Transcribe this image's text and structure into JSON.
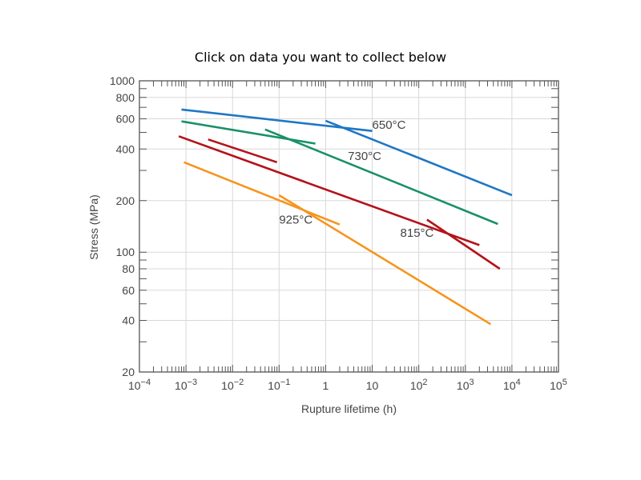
{
  "header": {
    "instruction": "Click on data you want to collect below"
  },
  "chart_data": {
    "type": "line",
    "title": "",
    "xlabel": "Rupture lifetime (h)",
    "ylabel": "Stress (MPa)",
    "xscale": "log",
    "yscale": "log",
    "xlim": [
      0.0001,
      100000
    ],
    "ylim": [
      20,
      1000
    ],
    "grid": true,
    "xticks": [
      {
        "value": 0.0001,
        "base": "10",
        "exp": "−4"
      },
      {
        "value": 0.001,
        "base": "10",
        "exp": "−3"
      },
      {
        "value": 0.01,
        "base": "10",
        "exp": "−2"
      },
      {
        "value": 0.1,
        "base": "10",
        "exp": "−1"
      },
      {
        "value": 1,
        "base": "1",
        "exp": ""
      },
      {
        "value": 10,
        "base": "10",
        "exp": ""
      },
      {
        "value": 100,
        "base": "10",
        "exp": "2"
      },
      {
        "value": 1000,
        "base": "10",
        "exp": "3"
      },
      {
        "value": 10000,
        "base": "10",
        "exp": "4"
      },
      {
        "value": 100000,
        "base": "10",
        "exp": "5"
      }
    ],
    "yticks": [
      {
        "value": 1000,
        "label": "1000"
      },
      {
        "value": 800,
        "label": "800"
      },
      {
        "value": 600,
        "label": "600"
      },
      {
        "value": 400,
        "label": "400"
      },
      {
        "value": 200,
        "label": "200"
      },
      {
        "value": 100,
        "label": "100"
      },
      {
        "value": 80,
        "label": "80"
      },
      {
        "value": 60,
        "label": "60"
      },
      {
        "value": 40,
        "label": "40"
      },
      {
        "value": 20,
        "label": "20"
      }
    ],
    "series": [
      {
        "name": "650°C",
        "color": "#1f77c4",
        "segments": [
          [
            [
              0.0008,
              680
            ],
            [
              10,
              510
            ]
          ],
          [
            [
              1,
              585
            ],
            [
              10000,
              215
            ]
          ]
        ]
      },
      {
        "name": "730°C",
        "color": "#1a9068",
        "segments": [
          [
            [
              0.0008,
              580
            ],
            [
              0.6,
              430
            ]
          ],
          [
            [
              0.05,
              520
            ],
            [
              5000,
              146
            ]
          ]
        ]
      },
      {
        "name": "815°C",
        "color": "#b5121b",
        "segments": [
          [
            [
              0.0007,
              475
            ],
            [
              2000,
              110
            ]
          ],
          [
            [
              0.003,
              455
            ],
            [
              0.09,
              335
            ]
          ],
          [
            [
              150,
              155
            ],
            [
              5500,
              80
            ]
          ]
        ]
      },
      {
        "name": "925°C",
        "color": "#f7941d",
        "segments": [
          [
            [
              0.0009,
              335
            ],
            [
              2,
              145
            ]
          ],
          [
            [
              0.1,
              215
            ],
            [
              3500,
              38
            ]
          ]
        ]
      }
    ]
  }
}
